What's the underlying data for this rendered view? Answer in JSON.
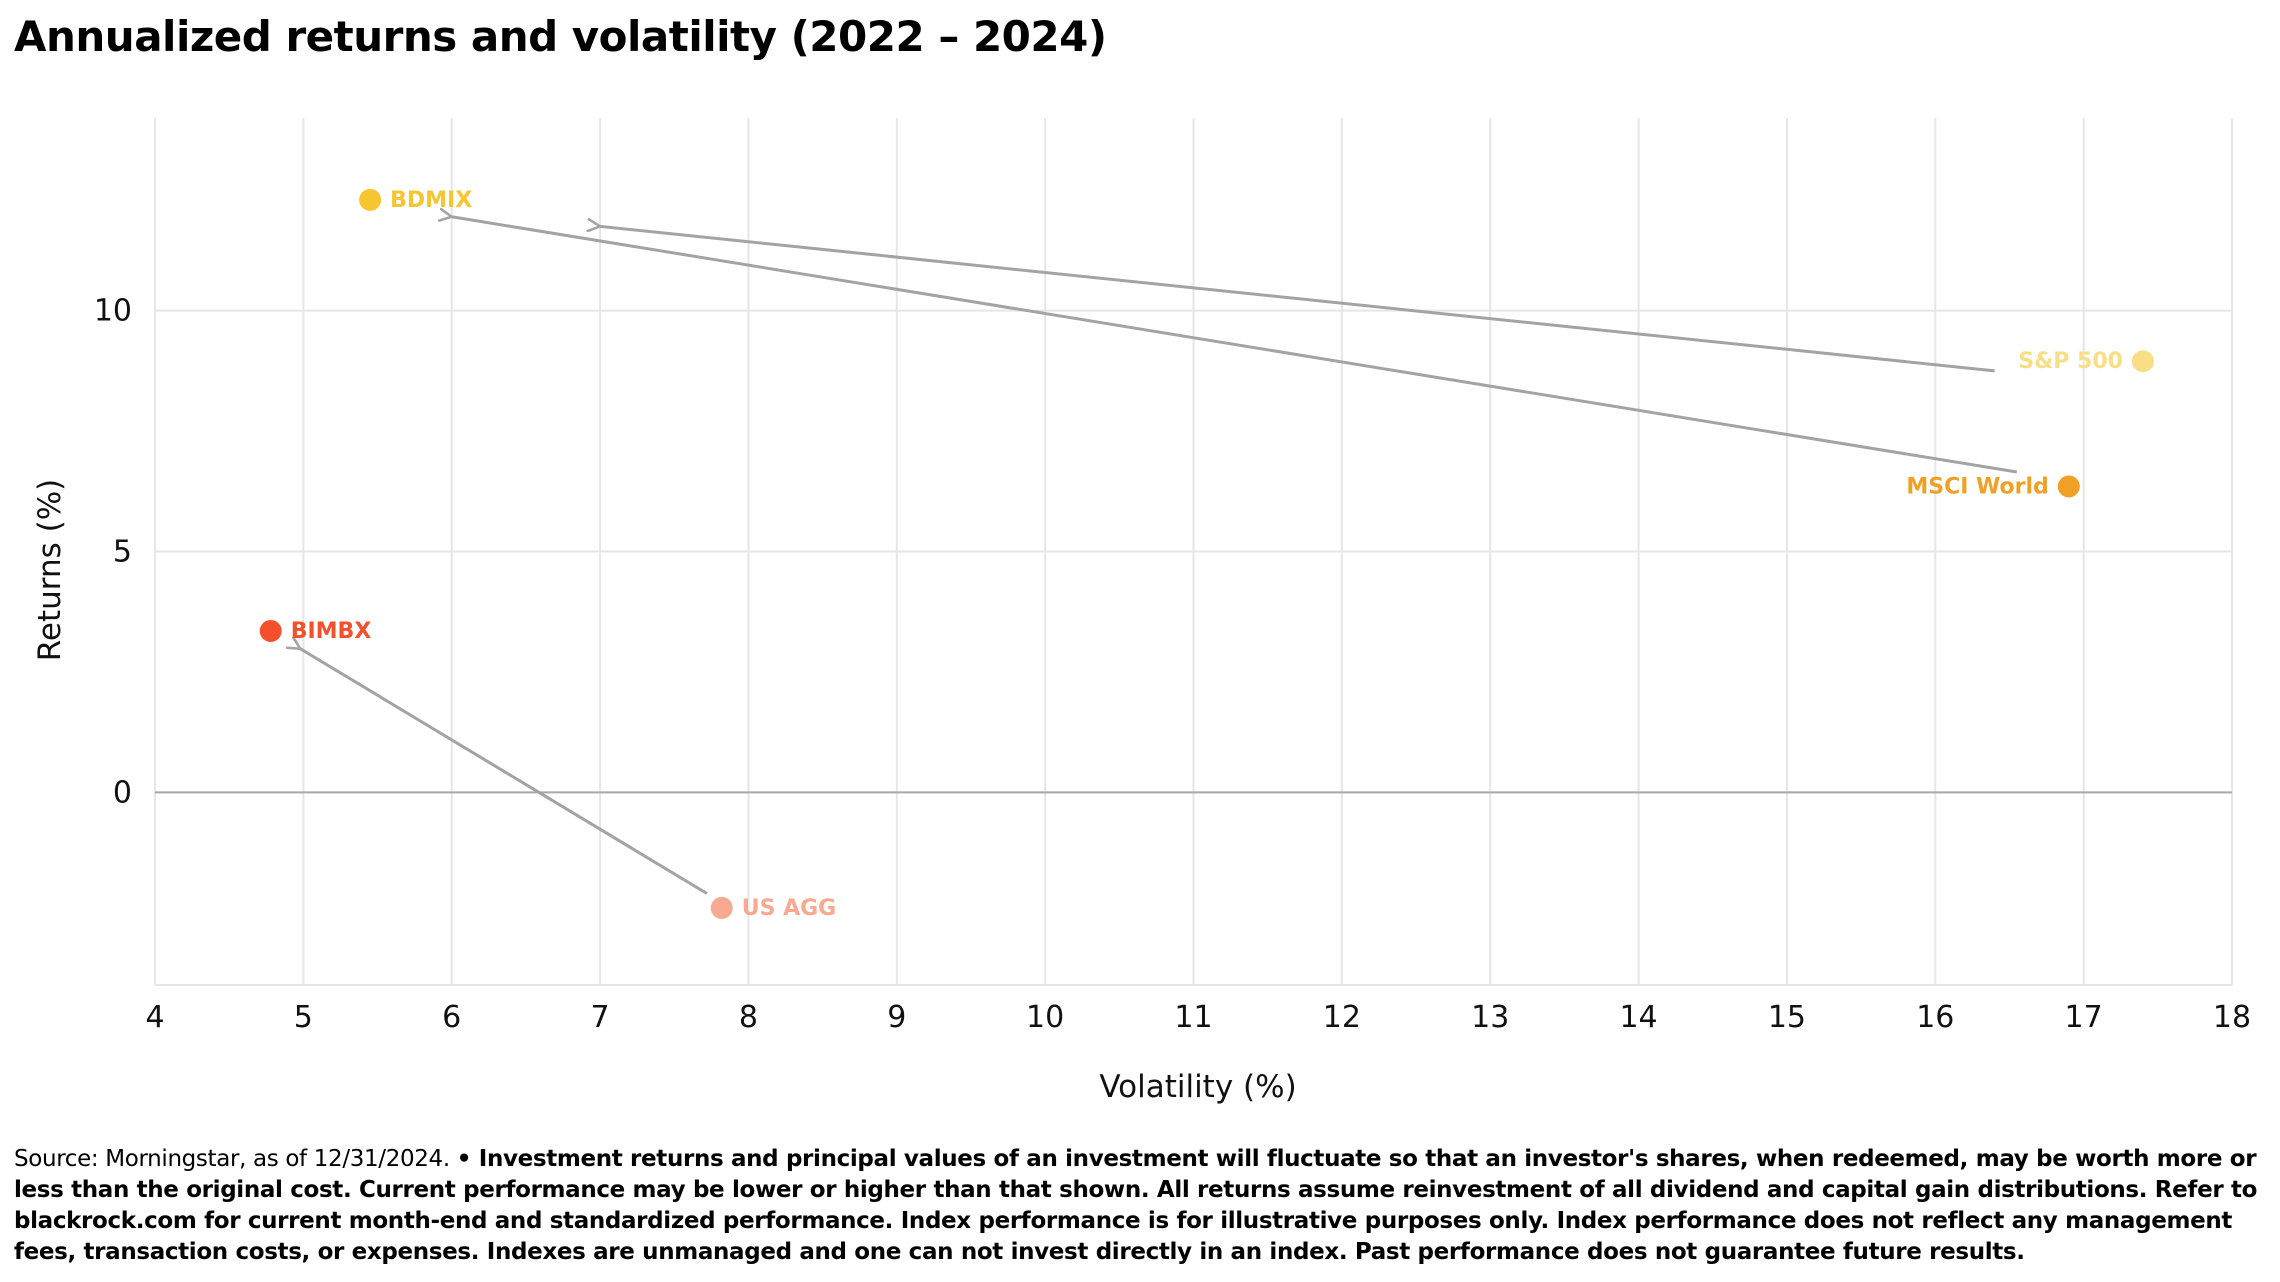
{
  "chart_data": {
    "type": "scatter",
    "title": "Annualized returns and volatility (2022 – 2024)",
    "xlabel": "Volatility (%)",
    "ylabel": "Returns (%)",
    "xlim": [
      4,
      18
    ],
    "ylim": [
      -4,
      14
    ],
    "xticks": [
      4,
      5,
      6,
      7,
      8,
      9,
      10,
      11,
      12,
      13,
      14,
      15,
      16,
      17,
      18
    ],
    "yticks": [
      0,
      5,
      10
    ],
    "grid": true,
    "points": [
      {
        "label": "BDMIX",
        "x": 5.45,
        "y": 12.3,
        "color": "#F7C52F",
        "label_side": "right"
      },
      {
        "label": "S&P 500",
        "x": 17.4,
        "y": 8.95,
        "color": "#F8DF85",
        "label_side": "left"
      },
      {
        "label": "MSCI World",
        "x": 16.9,
        "y": 6.35,
        "color": "#F0A024",
        "label_side": "left"
      },
      {
        "label": "BIMBX",
        "x": 4.78,
        "y": 3.35,
        "color": "#F4502B",
        "label_side": "right"
      },
      {
        "label": "US AGG",
        "x": 7.82,
        "y": -2.4,
        "color": "#F8A98F",
        "label_side": "right"
      }
    ],
    "arrows": [
      {
        "from": [
          16.4,
          8.75
        ],
        "to": [
          7.0,
          11.75
        ]
      },
      {
        "from": [
          16.55,
          6.65
        ],
        "to": [
          6.0,
          11.95
        ]
      },
      {
        "from": [
          7.72,
          -2.1
        ],
        "to": [
          4.98,
          2.98
        ]
      }
    ],
    "arrow_color": "#A3A3A3",
    "grid_color": "#E6E6E6",
    "zero_line_color": "#A8A8A8"
  },
  "footnote": {
    "source": "Source: Morningstar, as of 12/31/2024. ",
    "disclaimer": "• Investment returns and principal values of an investment will fluctuate so that an investor's shares, when redeemed, may be worth more or less than the original cost. Current performance may be lower or higher than that shown. All returns assume reinvestment of all dividend and capital gain distributions. Refer to blackrock.com for current month-end and standardized performance. Index performance is for illustrative purposes only. Index performance does not reflect any management fees, transaction costs, or expenses. Indexes are unmanaged and one can not invest directly in an index. Past performance does not guarantee future results."
  }
}
